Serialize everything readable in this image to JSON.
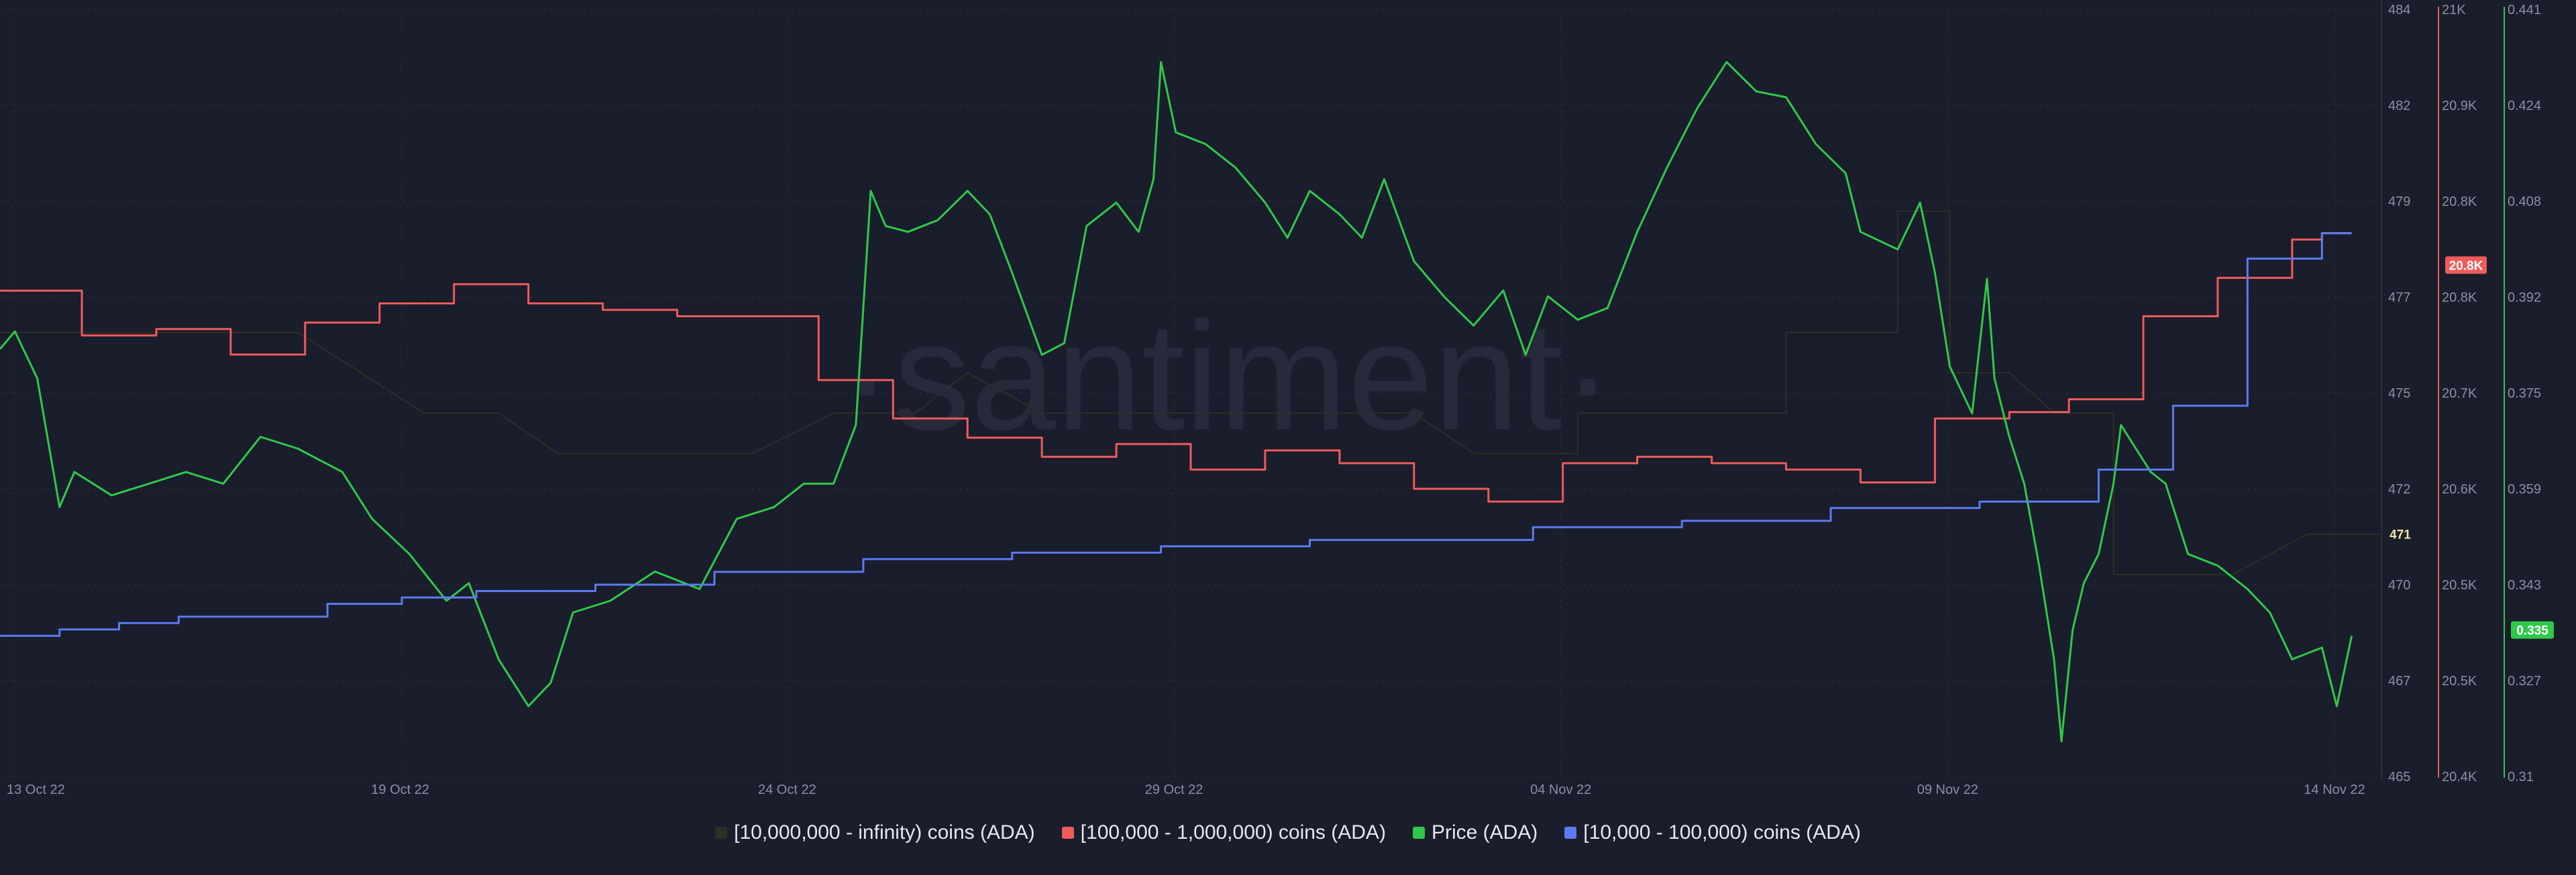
{
  "watermark": "·santiment·",
  "colors": {
    "background": "#1a1d2b",
    "grid": "#2a2e3f",
    "series_10m": "#2e2f25",
    "series_100k": "#ef5b5b",
    "series_price": "#2fc94a",
    "series_10k": "#5b7cf0"
  },
  "chart_data": {
    "type": "line",
    "x_ticks": [
      "13 Oct 22",
      "19 Oct 22",
      "24 Oct 22",
      "29 Oct 22",
      "04 Nov 22",
      "09 Nov 22",
      "14 Nov 22"
    ],
    "x_range": [
      "2022-10-13",
      "2022-11-14"
    ],
    "axes": {
      "left": {
        "ticks": [
          "465",
          "467",
          "470",
          "472",
          "475",
          "477",
          "479",
          "482",
          "484"
        ],
        "range": [
          465,
          484
        ]
      },
      "red": {
        "ticks": [
          "20.4K",
          "20.5K",
          "20.5K",
          "20.6K",
          "20.7K",
          "20.8K",
          "20.8K",
          "20.9K",
          "21K"
        ],
        "range": [
          20400,
          21000
        ]
      },
      "green": {
        "ticks": [
          "0.31",
          "0.327",
          "0.343",
          "0.359",
          "0.375",
          "0.392",
          "0.408",
          "0.424",
          "0.441"
        ],
        "range": [
          0.31,
          0.441
        ]
      }
    },
    "badges": {
      "left": "471",
      "red": "20.8K",
      "green": "0.335"
    },
    "legend": [
      {
        "label": "[10,000,000 - infinity) coins (ADA)",
        "color": "#2e2f25"
      },
      {
        "label": "[100,000  - 1,000,000) coins (ADA)",
        "color": "#ef5b5b"
      },
      {
        "label": "Price (ADA)",
        "color": "#2fc94a"
      },
      {
        "label": "[10,000 - 100,000) coins (ADA)",
        "color": "#5b7cf0"
      }
    ],
    "series": [
      {
        "name": "[10,000,000 - infinity) coins (ADA)",
        "axis": "left",
        "step": true,
        "points": [
          [
            0,
            476
          ],
          [
            4,
            476
          ],
          [
            5.7,
            474
          ],
          [
            6.7,
            474
          ],
          [
            7.5,
            473
          ],
          [
            10.1,
            473
          ],
          [
            11.2,
            474
          ],
          [
            12.3,
            474
          ],
          [
            13,
            475
          ],
          [
            14,
            474
          ],
          [
            15,
            474
          ],
          [
            16.6,
            474
          ],
          [
            17.2,
            474
          ],
          [
            17.8,
            474
          ],
          [
            19,
            474
          ],
          [
            19.8,
            473
          ],
          [
            21.2,
            473
          ],
          [
            21.2,
            474
          ],
          [
            24,
            474
          ],
          [
            24,
            476
          ],
          [
            25.5,
            476
          ],
          [
            25.5,
            479
          ],
          [
            26.2,
            479
          ],
          [
            26.2,
            475
          ],
          [
            27,
            475
          ],
          [
            27.6,
            474
          ],
          [
            28.4,
            474
          ],
          [
            28.4,
            470
          ],
          [
            30,
            470
          ],
          [
            31,
            471
          ],
          [
            32,
            471
          ]
        ]
      },
      {
        "name": "[100,000  - 1,000,000) coins (ADA)",
        "axis": "red",
        "step": true,
        "points": [
          [
            0,
            20780
          ],
          [
            1.1,
            20780
          ],
          [
            1.1,
            20745
          ],
          [
            2.1,
            20745
          ],
          [
            2.1,
            20750
          ],
          [
            3.1,
            20750
          ],
          [
            3.1,
            20730
          ],
          [
            4.1,
            20730
          ],
          [
            4.1,
            20755
          ],
          [
            5.1,
            20755
          ],
          [
            5.1,
            20770
          ],
          [
            6.1,
            20770
          ],
          [
            6.1,
            20785
          ],
          [
            7.1,
            20785
          ],
          [
            7.1,
            20770
          ],
          [
            8.1,
            20770
          ],
          [
            8.1,
            20765
          ],
          [
            9.1,
            20765
          ],
          [
            9.1,
            20760
          ],
          [
            11,
            20760
          ],
          [
            11,
            20710
          ],
          [
            12,
            20710
          ],
          [
            12,
            20680
          ],
          [
            13,
            20680
          ],
          [
            13,
            20665
          ],
          [
            14,
            20665
          ],
          [
            14,
            20650
          ],
          [
            15,
            20650
          ],
          [
            15,
            20660
          ],
          [
            16,
            20660
          ],
          [
            16,
            20640
          ],
          [
            17,
            20640
          ],
          [
            17,
            20655
          ],
          [
            18,
            20655
          ],
          [
            18,
            20645
          ],
          [
            19,
            20645
          ],
          [
            19,
            20625
          ],
          [
            20,
            20625
          ],
          [
            20,
            20615
          ],
          [
            21,
            20615
          ],
          [
            21,
            20645
          ],
          [
            22,
            20645
          ],
          [
            22,
            20650
          ],
          [
            23,
            20650
          ],
          [
            23,
            20645
          ],
          [
            24,
            20645
          ],
          [
            24,
            20640
          ],
          [
            25,
            20640
          ],
          [
            25,
            20630
          ],
          [
            26,
            20630
          ],
          [
            26,
            20680
          ],
          [
            27,
            20680
          ],
          [
            27,
            20685
          ],
          [
            27.8,
            20685
          ],
          [
            27.8,
            20695
          ],
          [
            28.8,
            20695
          ],
          [
            28.8,
            20760
          ],
          [
            29.8,
            20760
          ],
          [
            29.8,
            20790
          ],
          [
            30.8,
            20790
          ],
          [
            30.8,
            20820
          ],
          [
            31.2,
            20820
          ],
          [
            31.2,
            20825
          ],
          [
            31.6,
            20825
          ]
        ]
      },
      {
        "name": "Price (ADA)",
        "axis": "green",
        "step": false,
        "points": [
          [
            0,
            0.383
          ],
          [
            0.2,
            0.386
          ],
          [
            0.5,
            0.378
          ],
          [
            0.8,
            0.356
          ],
          [
            1,
            0.362
          ],
          [
            1.5,
            0.358
          ],
          [
            2,
            0.36
          ],
          [
            2.5,
            0.362
          ],
          [
            3,
            0.36
          ],
          [
            3.5,
            0.368
          ],
          [
            4,
            0.366
          ],
          [
            4.6,
            0.362
          ],
          [
            5,
            0.354
          ],
          [
            5.5,
            0.348
          ],
          [
            6,
            0.34
          ],
          [
            6.3,
            0.343
          ],
          [
            6.7,
            0.33
          ],
          [
            7.1,
            0.322
          ],
          [
            7.4,
            0.326
          ],
          [
            7.7,
            0.338
          ],
          [
            8.2,
            0.34
          ],
          [
            8.8,
            0.345
          ],
          [
            9.4,
            0.342
          ],
          [
            9.9,
            0.354
          ],
          [
            10.4,
            0.356
          ],
          [
            10.8,
            0.36
          ],
          [
            11.2,
            0.36
          ],
          [
            11.5,
            0.37
          ],
          [
            11.7,
            0.41
          ],
          [
            11.9,
            0.404
          ],
          [
            12.2,
            0.403
          ],
          [
            12.6,
            0.405
          ],
          [
            13,
            0.41
          ],
          [
            13.3,
            0.406
          ],
          [
            13.6,
            0.396
          ],
          [
            14,
            0.382
          ],
          [
            14.3,
            0.384
          ],
          [
            14.6,
            0.404
          ],
          [
            15,
            0.408
          ],
          [
            15.3,
            0.403
          ],
          [
            15.5,
            0.412
          ],
          [
            15.6,
            0.432
          ],
          [
            15.8,
            0.42
          ],
          [
            16.2,
            0.418
          ],
          [
            16.6,
            0.414
          ],
          [
            17,
            0.408
          ],
          [
            17.3,
            0.402
          ],
          [
            17.6,
            0.41
          ],
          [
            18,
            0.406
          ],
          [
            18.3,
            0.402
          ],
          [
            18.6,
            0.412
          ],
          [
            19,
            0.398
          ],
          [
            19.4,
            0.392
          ],
          [
            19.8,
            0.387
          ],
          [
            20.2,
            0.393
          ],
          [
            20.5,
            0.382
          ],
          [
            20.8,
            0.392
          ],
          [
            21.2,
            0.388
          ],
          [
            21.6,
            0.39
          ],
          [
            22,
            0.403
          ],
          [
            22.4,
            0.414
          ],
          [
            22.8,
            0.424
          ],
          [
            23.2,
            0.432
          ],
          [
            23.6,
            0.427
          ],
          [
            24,
            0.426
          ],
          [
            24.4,
            0.418
          ],
          [
            24.8,
            0.413
          ],
          [
            25,
            0.403
          ],
          [
            25.5,
            0.4
          ],
          [
            25.8,
            0.408
          ],
          [
            26,
            0.396
          ],
          [
            26.2,
            0.38
          ],
          [
            26.5,
            0.372
          ],
          [
            26.7,
            0.395
          ],
          [
            26.8,
            0.378
          ],
          [
            27,
            0.368
          ],
          [
            27.2,
            0.36
          ],
          [
            27.4,
            0.346
          ],
          [
            27.6,
            0.33
          ],
          [
            27.7,
            0.316
          ],
          [
            27.85,
            0.335
          ],
          [
            28,
            0.343
          ],
          [
            28.2,
            0.348
          ],
          [
            28.4,
            0.36
          ],
          [
            28.5,
            0.37
          ],
          [
            28.7,
            0.366
          ],
          [
            28.9,
            0.362
          ],
          [
            29.1,
            0.36
          ],
          [
            29.4,
            0.348
          ],
          [
            29.8,
            0.346
          ],
          [
            30.2,
            0.342
          ],
          [
            30.5,
            0.338
          ],
          [
            30.8,
            0.33
          ],
          [
            31.2,
            0.332
          ],
          [
            31.4,
            0.322
          ],
          [
            31.6,
            0.334
          ]
        ]
      },
      {
        "name": "[10,000 - 100,000) coins (ADA)",
        "axis": "red",
        "step": true,
        "points": [
          [
            0,
            20510
          ],
          [
            0.8,
            20510
          ],
          [
            0.8,
            20515
          ],
          [
            1.6,
            20515
          ],
          [
            1.6,
            20520
          ],
          [
            2.4,
            20520
          ],
          [
            2.4,
            20525
          ],
          [
            4.4,
            20525
          ],
          [
            4.4,
            20535
          ],
          [
            5.4,
            20535
          ],
          [
            5.4,
            20540
          ],
          [
            6.4,
            20540
          ],
          [
            6.4,
            20545
          ],
          [
            8,
            20545
          ],
          [
            8,
            20550
          ],
          [
            9.6,
            20550
          ],
          [
            9.6,
            20560
          ],
          [
            11.6,
            20560
          ],
          [
            11.6,
            20570
          ],
          [
            13.6,
            20570
          ],
          [
            13.6,
            20575
          ],
          [
            15.6,
            20575
          ],
          [
            15.6,
            20580
          ],
          [
            17.6,
            20580
          ],
          [
            17.6,
            20585
          ],
          [
            20.6,
            20585
          ],
          [
            20.6,
            20595
          ],
          [
            22.6,
            20595
          ],
          [
            22.6,
            20600
          ],
          [
            24.6,
            20600
          ],
          [
            24.6,
            20610
          ],
          [
            26.6,
            20610
          ],
          [
            26.6,
            20615
          ],
          [
            28.2,
            20615
          ],
          [
            28.2,
            20640
          ],
          [
            29.2,
            20640
          ],
          [
            29.2,
            20690
          ],
          [
            30.2,
            20690
          ],
          [
            30.2,
            20805
          ],
          [
            31.2,
            20805
          ],
          [
            31.2,
            20825
          ],
          [
            31.6,
            20825
          ]
        ]
      }
    ]
  }
}
